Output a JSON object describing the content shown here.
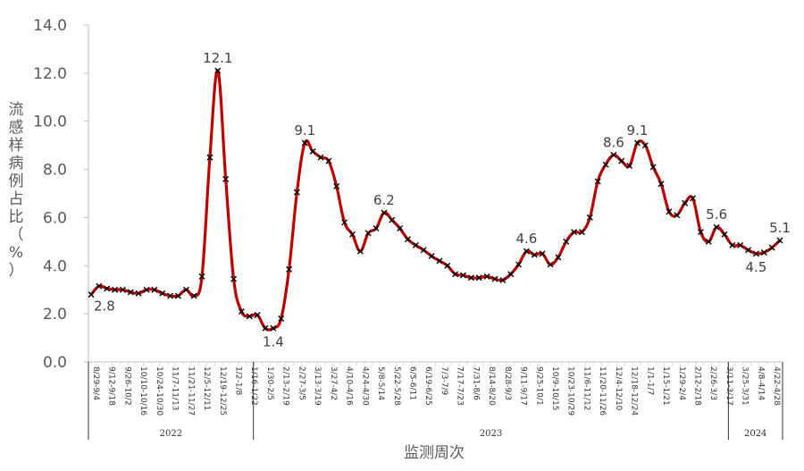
{
  "chart_data": {
    "type": "line",
    "ylabel": "流感样病例占比（%）",
    "xlabel": "监测周次",
    "ylim": [
      0,
      14
    ],
    "yticks": [
      "0.0",
      "2.0",
      "4.0",
      "6.0",
      "8.0",
      "10.0",
      "12.0",
      "14.0"
    ],
    "line_color": "#C00000",
    "marker": "x",
    "years": [
      {
        "label": "2022",
        "start": 0,
        "end": 20
      },
      {
        "label": "2023",
        "start": 21,
        "end": 80
      },
      {
        "label": "2024",
        "start": 81,
        "end": 99
      }
    ],
    "tick_labels": [
      "8/29-9/4",
      "9/12-9/18",
      "9/26-10/2",
      "10/10-10/16",
      "10/24-10/30",
      "11/7-11/13",
      "11/21-11/27",
      "12/5-12/11",
      "12/19-12/25",
      "1/2-1/8",
      "1/16-1/22",
      "1/30-2/5",
      "2/13-2/19",
      "2/27-3/5",
      "3/13-3/19",
      "3/27-4/2",
      "4/10-4/16",
      "4/24-4/30",
      "5/8-5/14",
      "5/22-5/28",
      "6/5-6/11",
      "6/19-6/25",
      "7/3-7/9",
      "7/17-7/23",
      "7/31-8/6",
      "8/14-8/20",
      "8/28-9/3",
      "9/11-9/17",
      "9/25-10/1",
      "10/9-10/15",
      "10/23-10/29",
      "11/6-11/12",
      "11/20-11/26",
      "12/4-12/10",
      "12/18-12/24",
      "1/1-1/7",
      "1/15-1/21",
      "1/29-2/4",
      "2/12-2/18",
      "2/26-3/3",
      "3/11-3/17",
      "3/25-3/31",
      "4/8-4/14",
      "4/22-4/28"
    ],
    "series": [
      {
        "values": [
          2.8,
          3.15,
          3.05,
          3.0,
          3.0,
          2.9,
          2.85,
          3.0,
          3.0,
          2.85,
          2.75,
          2.75,
          3.0,
          2.75,
          3.55,
          8.5,
          12.1,
          7.6,
          3.45,
          2.1,
          1.9,
          1.95,
          1.4,
          1.4,
          1.8,
          3.85,
          7.05,
          9.1,
          8.75,
          8.5,
          8.35,
          7.3,
          5.8,
          5.3,
          4.6,
          5.35,
          5.55,
          6.2,
          5.9,
          5.55,
          5.1,
          4.85,
          4.65,
          4.4,
          4.2,
          4.0,
          3.65,
          3.6,
          3.5,
          3.5,
          3.55,
          3.45,
          3.4,
          3.65,
          4.05,
          4.6,
          4.45,
          4.5,
          4.05,
          4.35,
          5.0,
          5.4,
          5.4,
          6.0,
          7.5,
          8.2,
          8.6,
          8.35,
          8.15,
          9.1,
          9.0,
          8.1,
          7.4,
          6.25,
          6.1,
          6.6,
          6.8,
          5.4,
          5.0,
          5.6,
          5.3,
          4.85,
          4.85,
          4.65,
          4.5,
          4.55,
          4.75,
          5.05
        ]
      }
    ],
    "annotations": [
      {
        "index": 0,
        "text": "2.8",
        "pos": "below-right"
      },
      {
        "index": 16,
        "text": "12.1",
        "pos": "above"
      },
      {
        "index": 23,
        "text": "1.4",
        "pos": "below"
      },
      {
        "index": 27,
        "text": "9.1",
        "pos": "above"
      },
      {
        "index": 37,
        "text": "6.2",
        "pos": "above"
      },
      {
        "index": 55,
        "text": "4.6",
        "pos": "above"
      },
      {
        "index": 66,
        "text": "8.6",
        "pos": "above"
      },
      {
        "index": 69,
        "text": "9.1",
        "pos": "above"
      },
      {
        "index": 79,
        "text": "5.6",
        "pos": "above"
      },
      {
        "index": 84,
        "text": "4.5",
        "pos": "below"
      },
      {
        "index": 87,
        "text": "5.1",
        "pos": "above"
      }
    ]
  }
}
